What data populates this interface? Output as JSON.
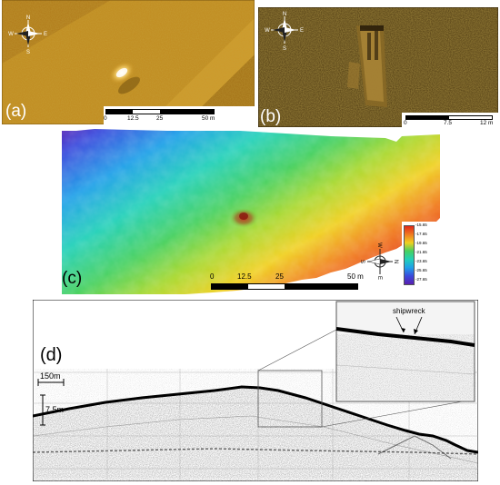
{
  "panels": {
    "a": {
      "label": "(a)",
      "compass": {
        "n": "N",
        "e": "E",
        "s": "S",
        "w": "W"
      },
      "scale": {
        "ticks": [
          "0",
          "12.5",
          "25",
          "50 m"
        ]
      }
    },
    "b": {
      "label": "(b)",
      "compass": {
        "n": "N",
        "e": "E",
        "s": "S",
        "w": "W"
      },
      "scale": {
        "ticks": [
          "0",
          "7.5",
          "12 m"
        ]
      }
    },
    "c": {
      "label": "(c)",
      "compass": {
        "n": "N",
        "e": "E",
        "s": "S",
        "w": "W"
      },
      "scale": {
        "ticks": [
          "0",
          "12.5",
          "25",
          "50 m"
        ]
      },
      "colorbar": {
        "values": [
          "-15.65",
          "-17.65",
          "-19.65",
          "-21.65",
          "-23.65",
          "-25.65",
          "-27.65"
        ]
      }
    },
    "d": {
      "label": "(d)",
      "h_scale": "150m",
      "v_scale": "7.5m",
      "inset_annotation": "shipwreck"
    }
  },
  "colors": {
    "sonar_amber": "#c8901c",
    "sonar_dark": "#3a2a08",
    "seabed_line": "#000000"
  }
}
